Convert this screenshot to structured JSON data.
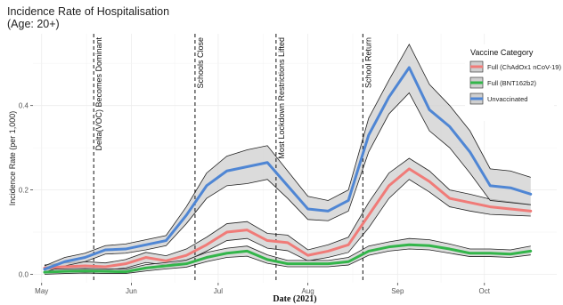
{
  "chart_data": {
    "type": "line",
    "title": "Incidence Rate of Hospitalisation",
    "subtitle": "(Age: 20+)",
    "xlabel": "Date (2021)",
    "ylabel": "Incidence Rate (per 1,000)",
    "xlim": [
      "2021-04-28",
      "2021-10-26"
    ],
    "ylim": [
      -0.02,
      0.57
    ],
    "x_ticks": [
      {
        "date": "2021-05-01",
        "label": "May"
      },
      {
        "date": "2021-06-01",
        "label": "Jun"
      },
      {
        "date": "2021-07-01",
        "label": "Jul"
      },
      {
        "date": "2021-08-01",
        "label": "Aug"
      },
      {
        "date": "2021-09-01",
        "label": "Sep"
      },
      {
        "date": "2021-10-01",
        "label": "Oct"
      }
    ],
    "y_ticks": [
      {
        "value": 0.0,
        "label": "0.0"
      },
      {
        "value": 0.2,
        "label": "0.2"
      },
      {
        "value": 0.4,
        "label": "0.4"
      }
    ],
    "grid": true,
    "legend": {
      "title": "Vaccine Category",
      "position": "top-right"
    },
    "x": [
      "2021-05-02",
      "2021-05-09",
      "2021-05-16",
      "2021-05-23",
      "2021-05-30",
      "2021-06-06",
      "2021-06-13",
      "2021-06-20",
      "2021-06-27",
      "2021-07-04",
      "2021-07-11",
      "2021-07-18",
      "2021-07-25",
      "2021-08-01",
      "2021-08-08",
      "2021-08-15",
      "2021-08-22",
      "2021-08-29",
      "2021-09-05",
      "2021-09-12",
      "2021-09-19",
      "2021-09-26",
      "2021-10-03",
      "2021-10-10",
      "2021-10-17"
    ],
    "series": [
      {
        "name": "Full (ChAdOx1 nCoV-19)",
        "color": "#f07b78",
        "values": [
          0.015,
          0.018,
          0.02,
          0.018,
          0.025,
          0.04,
          0.032,
          0.045,
          0.07,
          0.1,
          0.105,
          0.08,
          0.075,
          0.045,
          0.055,
          0.07,
          0.14,
          0.21,
          0.25,
          0.22,
          0.18,
          0.17,
          0.16,
          0.155,
          0.15
        ],
        "lower": [
          0.008,
          0.01,
          0.012,
          0.01,
          0.015,
          0.028,
          0.022,
          0.032,
          0.055,
          0.08,
          0.085,
          0.062,
          0.056,
          0.032,
          0.04,
          0.052,
          0.11,
          0.18,
          0.225,
          0.195,
          0.16,
          0.15,
          0.142,
          0.14,
          0.138
        ],
        "upper": [
          0.022,
          0.027,
          0.03,
          0.027,
          0.035,
          0.052,
          0.044,
          0.06,
          0.088,
          0.12,
          0.125,
          0.097,
          0.093,
          0.058,
          0.07,
          0.088,
          0.17,
          0.24,
          0.275,
          0.245,
          0.2,
          0.19,
          0.178,
          0.172,
          0.165
        ]
      },
      {
        "name": "Full (BNT162b2)",
        "color": "#33b54a",
        "values": [
          0.005,
          0.007,
          0.008,
          0.007,
          0.006,
          0.015,
          0.02,
          0.025,
          0.04,
          0.05,
          0.055,
          0.035,
          0.025,
          0.025,
          0.025,
          0.03,
          0.055,
          0.065,
          0.07,
          0.068,
          0.06,
          0.05,
          0.05,
          0.048,
          0.055
        ],
        "lower": [
          0.0,
          0.002,
          0.003,
          0.002,
          0.002,
          0.008,
          0.013,
          0.017,
          0.03,
          0.04,
          0.043,
          0.026,
          0.018,
          0.018,
          0.018,
          0.022,
          0.045,
          0.055,
          0.06,
          0.058,
          0.05,
          0.042,
          0.042,
          0.04,
          0.046
        ],
        "upper": [
          0.012,
          0.013,
          0.014,
          0.013,
          0.012,
          0.023,
          0.028,
          0.034,
          0.052,
          0.062,
          0.067,
          0.046,
          0.033,
          0.033,
          0.033,
          0.04,
          0.067,
          0.077,
          0.085,
          0.082,
          0.072,
          0.06,
          0.06,
          0.058,
          0.067
        ]
      },
      {
        "name": "Unvaccinated",
        "color": "#4f86d4",
        "values": [
          0.012,
          0.03,
          0.04,
          0.058,
          0.06,
          0.07,
          0.08,
          0.14,
          0.21,
          0.245,
          0.255,
          0.265,
          0.21,
          0.155,
          0.15,
          0.175,
          0.33,
          0.42,
          0.49,
          0.39,
          0.35,
          0.29,
          0.21,
          0.205,
          0.19
        ],
        "lower": [
          0.005,
          0.02,
          0.03,
          0.048,
          0.05,
          0.058,
          0.068,
          0.12,
          0.18,
          0.21,
          0.215,
          0.225,
          0.18,
          0.13,
          0.127,
          0.15,
          0.29,
          0.38,
          0.43,
          0.34,
          0.3,
          0.24,
          0.175,
          0.17,
          0.165
        ],
        "upper": [
          0.02,
          0.04,
          0.05,
          0.068,
          0.072,
          0.082,
          0.092,
          0.16,
          0.24,
          0.28,
          0.295,
          0.305,
          0.245,
          0.185,
          0.175,
          0.2,
          0.37,
          0.46,
          0.545,
          0.45,
          0.4,
          0.34,
          0.25,
          0.245,
          0.23
        ]
      }
    ],
    "annotations": [
      {
        "date": "2021-05-19",
        "label": "Delta(VOC) Becomes Dominant"
      },
      {
        "date": "2021-06-23",
        "label": "Schools Close"
      },
      {
        "date": "2021-07-21",
        "label": "Most Lockdown Restrictions Lifted"
      },
      {
        "date": "2021-08-20",
        "label": "School Return"
      }
    ]
  }
}
